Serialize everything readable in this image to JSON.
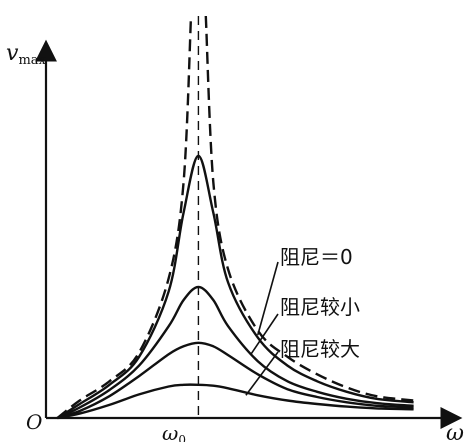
{
  "chart_data": {
    "type": "line",
    "title": "",
    "xlabel": "ω",
    "ylabel": "v_max",
    "y_axis_label": {
      "base": "v",
      "subscript": "max"
    },
    "origin_label": "O",
    "x_tick_label": {
      "base": "ω",
      "subscript": "0"
    },
    "grid": false,
    "x_range": [
      0,
      2.5
    ],
    "y_range": [
      0,
      4.6
    ],
    "resonance_line_x": 1.0,
    "series": [
      {
        "name": "阻尼＝0",
        "style": "dashed",
        "x": [
          0.05,
          0.2,
          0.4,
          0.6,
          0.8,
          0.9,
          0.95,
          1.05,
          1.1,
          1.2,
          1.4,
          1.6,
          1.8,
          2.0,
          2.2,
          2.45
        ],
        "y": [
          0.0,
          0.2,
          0.42,
          0.75,
          1.6,
          2.7,
          4.6,
          4.6,
          2.7,
          1.7,
          1.0,
          0.7,
          0.5,
          0.35,
          0.25,
          0.2
        ]
      },
      {
        "name": "",
        "style": "solid",
        "x": [
          0.05,
          0.2,
          0.4,
          0.6,
          0.8,
          0.9,
          1.0,
          1.1,
          1.2,
          1.4,
          1.6,
          1.8,
          2.0,
          2.2,
          2.45
        ],
        "y": [
          0.0,
          0.16,
          0.38,
          0.7,
          1.45,
          2.35,
          3.0,
          2.35,
          1.55,
          0.92,
          0.6,
          0.42,
          0.3,
          0.22,
          0.18
        ]
      },
      {
        "name": "阻尼较小",
        "style": "solid",
        "x": [
          0.05,
          0.2,
          0.4,
          0.6,
          0.8,
          0.9,
          1.0,
          1.1,
          1.2,
          1.4,
          1.6,
          1.8,
          2.0,
          2.2,
          2.45
        ],
        "y": [
          0.0,
          0.12,
          0.32,
          0.6,
          1.05,
          1.35,
          1.5,
          1.35,
          1.05,
          0.65,
          0.42,
          0.3,
          0.22,
          0.17,
          0.14
        ]
      },
      {
        "name": "",
        "style": "solid",
        "x": [
          0.05,
          0.2,
          0.4,
          0.6,
          0.8,
          0.9,
          1.0,
          1.1,
          1.2,
          1.4,
          1.6,
          1.8,
          2.0,
          2.2,
          2.45
        ],
        "y": [
          0.0,
          0.08,
          0.25,
          0.48,
          0.73,
          0.82,
          0.86,
          0.82,
          0.72,
          0.5,
          0.33,
          0.24,
          0.18,
          0.14,
          0.12
        ]
      },
      {
        "name": "阻尼较大",
        "style": "solid",
        "x": [
          0.05,
          0.2,
          0.4,
          0.6,
          0.8,
          0.9,
          1.0,
          1.1,
          1.2,
          1.4,
          1.6,
          1.8,
          2.0,
          2.2,
          2.45
        ],
        "y": [
          0.0,
          0.05,
          0.15,
          0.27,
          0.36,
          0.38,
          0.38,
          0.37,
          0.34,
          0.26,
          0.2,
          0.16,
          0.13,
          0.11,
          0.1
        ]
      }
    ],
    "labels": [
      "阻尼＝0",
      "阻尼较小",
      "阻尼较大"
    ]
  }
}
